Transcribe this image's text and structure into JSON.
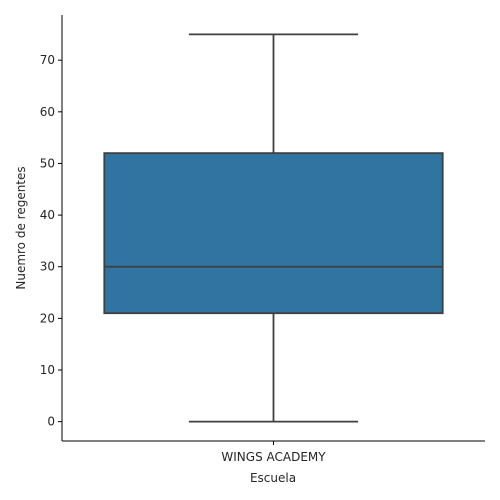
{
  "chart_data": {
    "type": "box",
    "title": "",
    "xlabel": "Escuela",
    "ylabel": "Nuemro de regentes",
    "categories": [
      "WINGS ACADEMY"
    ],
    "boxes": [
      {
        "category": "WINGS ACADEMY",
        "min": 0,
        "q1": 21,
        "median": 30,
        "q3": 52,
        "max": 75
      }
    ],
    "ylim": [
      -3.75,
      78.75
    ],
    "yticks": [
      0,
      10,
      20,
      30,
      40,
      50,
      60,
      70
    ],
    "grid": false,
    "colors": {
      "box_fill": "#3274a1",
      "line": "#3f3f3f",
      "axis": "#000000"
    }
  }
}
